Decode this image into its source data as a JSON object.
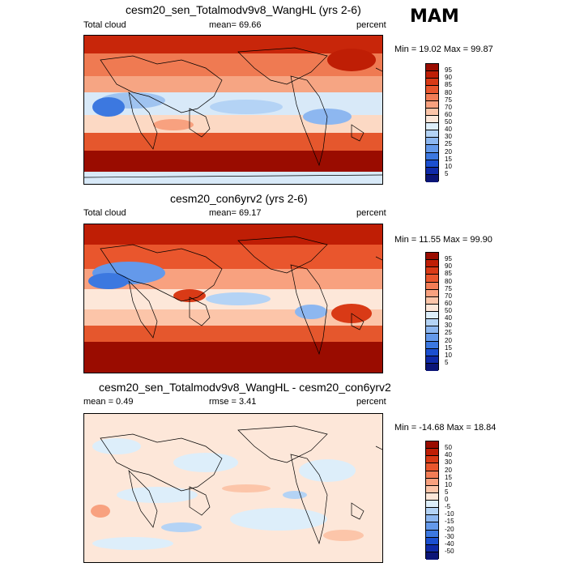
{
  "season": "MAM",
  "panels": [
    {
      "title": "cesm20_sen_Totalmodv9v8_WangHL (yrs 2-6)",
      "left_label": "Total cloud",
      "center_label": "mean=  69.66",
      "right_label": "percent",
      "minmax": "Min =  19.02 Max =  99.87",
      "colorbar_labels": [
        "95",
        "90",
        "85",
        "80",
        "75",
        "70",
        "60",
        "50",
        "40",
        "30",
        "25",
        "20",
        "15",
        "10",
        "5"
      ],
      "colorbar_colors": [
        "#9a0c00",
        "#bf1e05",
        "#d93a16",
        "#e9562d",
        "#f27d56",
        "#f8a17f",
        "#fcc5a9",
        "#fde7d9",
        "#ddeefa",
        "#b4d3f5",
        "#8db7f0",
        "#6499ea",
        "#3c78e0",
        "#1b4fd0",
        "#0f2aa8",
        "#0b1577"
      ],
      "theme": "warm"
    },
    {
      "title": "cesm20_con6yrv2 (yrs 2-6)",
      "left_label": "Total cloud",
      "center_label": "mean=  69.17",
      "right_label": "percent",
      "minmax": "Min =  11.55 Max =  99.90",
      "colorbar_labels": [
        "95",
        "90",
        "85",
        "80",
        "75",
        "70",
        "60",
        "50",
        "40",
        "30",
        "25",
        "20",
        "15",
        "10",
        "5"
      ],
      "colorbar_colors": [
        "#9a0c00",
        "#bf1e05",
        "#d93a16",
        "#e9562d",
        "#f27d56",
        "#f8a17f",
        "#fcc5a9",
        "#fde7d9",
        "#ddeefa",
        "#b4d3f5",
        "#8db7f0",
        "#6499ea",
        "#3c78e0",
        "#1b4fd0",
        "#0f2aa8",
        "#0b1577"
      ],
      "theme": "warm"
    },
    {
      "title": "cesm20_sen_Totalmodv9v8_WangHL - cesm20_con6yrv2",
      "left_label": "mean =   0.49",
      "center_label": "rmse =   3.41",
      "right_label": "percent",
      "minmax": "Min = -14.68 Max =  18.84",
      "colorbar_labels": [
        "50",
        "40",
        "30",
        "20",
        "15",
        "10",
        "5",
        "0",
        "-5",
        "-10",
        "-15",
        "-20",
        "-30",
        "-40",
        "-50"
      ],
      "colorbar_colors": [
        "#9a0c00",
        "#bf1e05",
        "#d93a16",
        "#e9562d",
        "#f27d56",
        "#f8a17f",
        "#fcc5a9",
        "#fde7d9",
        "#ddeefa",
        "#b4d3f5",
        "#8db7f0",
        "#6499ea",
        "#3c78e0",
        "#1b4fd0",
        "#0f2aa8",
        "#0b1577"
      ],
      "theme": "diff"
    }
  ]
}
